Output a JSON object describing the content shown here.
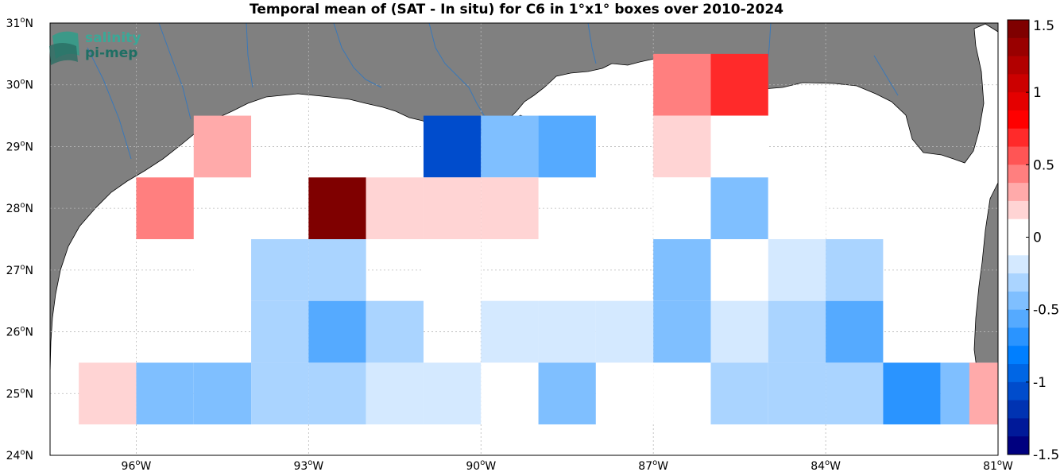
{
  "title": "Temporal mean of (SAT - In situ) for C6 in 1°x1° boxes over 2010-2024",
  "logo": {
    "line1": "salinity",
    "line2": "pi-mep"
  },
  "lon_ticks": [
    {
      "value": -96,
      "label_deg": "96",
      "label_dir": "W"
    },
    {
      "value": -93,
      "label_deg": "93",
      "label_dir": "W"
    },
    {
      "value": -90,
      "label_deg": "90",
      "label_dir": "W"
    },
    {
      "value": -87,
      "label_deg": "87",
      "label_dir": "W"
    },
    {
      "value": -84,
      "label_deg": "84",
      "label_dir": "W"
    },
    {
      "value": -81,
      "label_deg": "81",
      "label_dir": "W"
    }
  ],
  "lat_ticks": [
    {
      "value": 24,
      "label_deg": "24",
      "label_dir": "N"
    },
    {
      "value": 25,
      "label_deg": "25",
      "label_dir": "N"
    },
    {
      "value": 26,
      "label_deg": "26",
      "label_dir": "N"
    },
    {
      "value": 27,
      "label_deg": "27",
      "label_dir": "N"
    },
    {
      "value": 28,
      "label_deg": "28",
      "label_dir": "N"
    },
    {
      "value": 29,
      "label_deg": "29",
      "label_dir": "N"
    },
    {
      "value": 30,
      "label_deg": "30",
      "label_dir": "N"
    },
    {
      "value": 31,
      "label_deg": "31",
      "label_dir": "N"
    }
  ],
  "colorbar": {
    "range": [
      -1.5,
      1.5
    ],
    "tick_labels": [
      {
        "value": 1.5,
        "label": "1.5"
      },
      {
        "value": 1,
        "label": "1"
      },
      {
        "value": 0.5,
        "label": "0.5"
      },
      {
        "value": 0,
        "label": "0"
      },
      {
        "value": -0.5,
        "label": "-0.5"
      },
      {
        "value": -1,
        "label": "-1"
      },
      {
        "value": -1.5,
        "label": "-1.5"
      }
    ],
    "colors_top_to_bottom": [
      "#7f0000",
      "#990000",
      "#b20000",
      "#cc0000",
      "#e50000",
      "#ff0000",
      "#ff2a2a",
      "#ff5555",
      "#ff7f7f",
      "#ffaaaa",
      "#ffd4d4",
      "#ffffff",
      "#ffffff",
      "#d4e9ff",
      "#aad4ff",
      "#7fbfff",
      "#55aaff",
      "#2a94ff",
      "#007fff",
      "#0066e5",
      "#004ccc",
      "#0033b2",
      "#001999",
      "#00007f"
    ]
  },
  "colors": {
    "land": "#808080",
    "ocean": "#ffffff",
    "rivers": "#3a78b8",
    "grid": "#b8b8b8"
  },
  "chart_data": {
    "type": "heatmap",
    "title": "Temporal mean of (SAT - In situ) for C6 in 1°x1° boxes over 2010-2024",
    "xlim": [
      -97.5,
      -81
    ],
    "ylim": [
      24,
      31
    ],
    "cell_size_deg": 1,
    "cells": [
      {
        "lon": -86.5,
        "lat": 30,
        "value": 0.4
      },
      {
        "lon": -85.5,
        "lat": 30,
        "value": 0.7
      },
      {
        "lon": -94.5,
        "lat": 29,
        "value": 0.3
      },
      {
        "lon": -90.5,
        "lat": 29,
        "value": -1.1
      },
      {
        "lon": -89.5,
        "lat": 29,
        "value": -0.4
      },
      {
        "lon": -88.5,
        "lat": 29,
        "value": -0.5
      },
      {
        "lon": -86.5,
        "lat": 29,
        "value": 0.15
      },
      {
        "lon": -85.5,
        "lat": 29,
        "value": -0.1
      },
      {
        "lon": -95.5,
        "lat": 28,
        "value": 0.4
      },
      {
        "lon": -92.5,
        "lat": 28,
        "value": 1.5
      },
      {
        "lon": -91.5,
        "lat": 28,
        "value": 0.25
      },
      {
        "lon": -90.5,
        "lat": 28,
        "value": 0.25
      },
      {
        "lon": -89.5,
        "lat": 28,
        "value": 0.15
      },
      {
        "lon": -86.5,
        "lat": 28,
        "value": -0.1
      },
      {
        "lon": -85.5,
        "lat": 28,
        "value": -0.4
      },
      {
        "lon": -84.5,
        "lat": 28,
        "value": -0.1
      },
      {
        "lon": -94.5,
        "lat": 27,
        "value": -0.1
      },
      {
        "lon": -93.5,
        "lat": 27,
        "value": -0.3
      },
      {
        "lon": -92.5,
        "lat": 27,
        "value": -0.3
      },
      {
        "lon": -90.5,
        "lat": 27,
        "value": -0.1
      },
      {
        "lon": -86.5,
        "lat": 27,
        "value": -0.4
      },
      {
        "lon": -85.5,
        "lat": 27,
        "value": -0.1
      },
      {
        "lon": -84.5,
        "lat": 27,
        "value": -0.2
      },
      {
        "lon": -83.5,
        "lat": 27,
        "value": -0.3
      },
      {
        "lon": -93.5,
        "lat": 26,
        "value": -0.3
      },
      {
        "lon": -92.5,
        "lat": 26,
        "value": -0.5
      },
      {
        "lon": -91.5,
        "lat": 26,
        "value": -0.3
      },
      {
        "lon": -89.5,
        "lat": 26,
        "value": -0.2
      },
      {
        "lon": -88.5,
        "lat": 26,
        "value": -0.2
      },
      {
        "lon": -87.5,
        "lat": 26,
        "value": -0.2
      },
      {
        "lon": -86.5,
        "lat": 26,
        "value": -0.4
      },
      {
        "lon": -85.5,
        "lat": 26,
        "value": -0.2
      },
      {
        "lon": -84.5,
        "lat": 26,
        "value": -0.3
      },
      {
        "lon": -83.5,
        "lat": 26,
        "value": -0.5
      },
      {
        "lon": -96.5,
        "lat": 25,
        "value": 0.25
      },
      {
        "lon": -95.5,
        "lat": 25,
        "value": -0.4
      },
      {
        "lon": -94.5,
        "lat": 25,
        "value": -0.4
      },
      {
        "lon": -93.5,
        "lat": 25,
        "value": -0.3
      },
      {
        "lon": -92.5,
        "lat": 25,
        "value": -0.3
      },
      {
        "lon": -91.5,
        "lat": 25,
        "value": -0.2
      },
      {
        "lon": -90.5,
        "lat": 25,
        "value": -0.2
      },
      {
        "lon": -89.5,
        "lat": 25,
        "value": -0.1
      },
      {
        "lon": -88.5,
        "lat": 25,
        "value": -0.4
      },
      {
        "lon": -87.5,
        "lat": 25,
        "value": -0.1
      },
      {
        "lon": -86.5,
        "lat": 25,
        "value": -0.1
      },
      {
        "lon": -85.5,
        "lat": 25,
        "value": -0.3
      },
      {
        "lon": -84.5,
        "lat": 25,
        "value": -0.3
      },
      {
        "lon": -83.5,
        "lat": 25,
        "value": -0.3
      },
      {
        "lon": -82.5,
        "lat": 25,
        "value": -0.7
      },
      {
        "lon": -81.5,
        "lat": 25,
        "value": -0.4
      },
      {
        "lon": -81,
        "lat": 25,
        "value": 0.3
      }
    ]
  }
}
